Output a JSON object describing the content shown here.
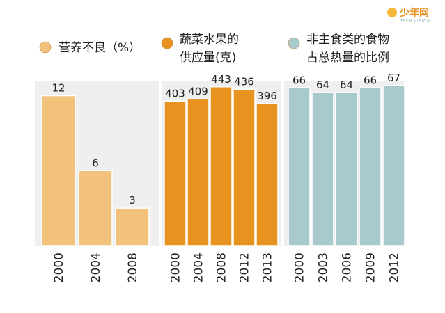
{
  "logo": {
    "text": "少年网",
    "sub": "TEEN VISION"
  },
  "chart_data": [
    {
      "type": "bar",
      "legend": [
        "营养不良（%）"
      ],
      "color": "#f2c27c",
      "categories": [
        "2000",
        "2004",
        "2008"
      ],
      "values": [
        12,
        6,
        3
      ],
      "ylim": [
        0,
        13.2
      ]
    },
    {
      "type": "bar",
      "legend": [
        "蔬菜水果的",
        "供应量(克)"
      ],
      "color": "#e8921f",
      "categories": [
        "2000",
        "2004",
        "2008",
        "2012",
        "2013"
      ],
      "values": [
        403,
        409,
        443,
        436,
        396
      ],
      "ylim": [
        0,
        460
      ]
    },
    {
      "type": "bar",
      "legend": [
        "非主食类的食物",
        "占总热量的比例"
      ],
      "color": "#a9cacc",
      "categories": [
        "2000",
        "2003",
        "2006",
        "2009",
        "2012"
      ],
      "values": [
        66,
        64,
        64,
        66,
        67
      ],
      "ylim": [
        0,
        69
      ]
    }
  ]
}
